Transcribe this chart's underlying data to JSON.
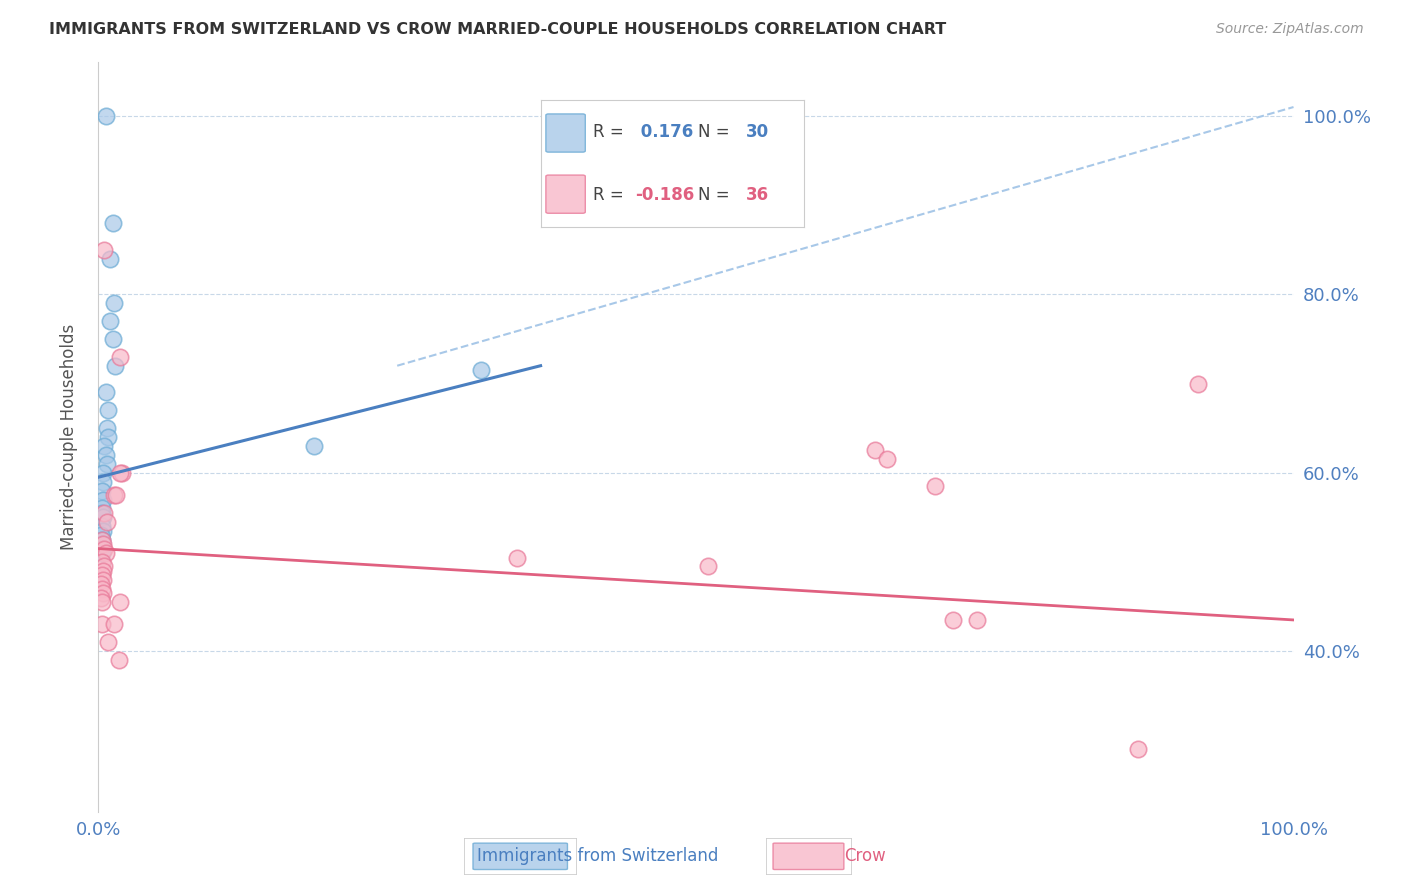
{
  "title": "IMMIGRANTS FROM SWITZERLAND VS CROW MARRIED-COUPLE HOUSEHOLDS CORRELATION CHART",
  "source": "Source: ZipAtlas.com",
  "ylabel": "Married-couple Households",
  "blue_scatter": [
    [
      0.006,
      1.0
    ],
    [
      0.012,
      0.88
    ],
    [
      0.01,
      0.84
    ],
    [
      0.013,
      0.79
    ],
    [
      0.01,
      0.77
    ],
    [
      0.012,
      0.75
    ],
    [
      0.014,
      0.72
    ],
    [
      0.006,
      0.69
    ],
    [
      0.008,
      0.67
    ],
    [
      0.007,
      0.65
    ],
    [
      0.008,
      0.64
    ],
    [
      0.005,
      0.63
    ],
    [
      0.006,
      0.62
    ],
    [
      0.007,
      0.61
    ],
    [
      0.004,
      0.6
    ],
    [
      0.004,
      0.59
    ],
    [
      0.003,
      0.58
    ],
    [
      0.004,
      0.57
    ],
    [
      0.003,
      0.56
    ],
    [
      0.003,
      0.555
    ],
    [
      0.004,
      0.55
    ],
    [
      0.003,
      0.54
    ],
    [
      0.004,
      0.535
    ],
    [
      0.002,
      0.53
    ],
    [
      0.003,
      0.525
    ],
    [
      0.003,
      0.52
    ],
    [
      0.002,
      0.515
    ],
    [
      0.003,
      0.51
    ],
    [
      0.18,
      0.63
    ],
    [
      0.32,
      0.715
    ]
  ],
  "pink_scatter": [
    [
      0.005,
      0.85
    ],
    [
      0.018,
      0.73
    ],
    [
      0.02,
      0.6
    ],
    [
      0.018,
      0.6
    ],
    [
      0.013,
      0.575
    ],
    [
      0.015,
      0.575
    ],
    [
      0.005,
      0.555
    ],
    [
      0.007,
      0.545
    ],
    [
      0.003,
      0.525
    ],
    [
      0.004,
      0.52
    ],
    [
      0.005,
      0.515
    ],
    [
      0.006,
      0.51
    ],
    [
      0.003,
      0.5
    ],
    [
      0.005,
      0.495
    ],
    [
      0.004,
      0.49
    ],
    [
      0.003,
      0.485
    ],
    [
      0.004,
      0.48
    ],
    [
      0.002,
      0.475
    ],
    [
      0.003,
      0.47
    ],
    [
      0.004,
      0.465
    ],
    [
      0.002,
      0.46
    ],
    [
      0.003,
      0.455
    ],
    [
      0.018,
      0.455
    ],
    [
      0.003,
      0.43
    ],
    [
      0.013,
      0.43
    ],
    [
      0.008,
      0.41
    ],
    [
      0.017,
      0.39
    ],
    [
      0.35,
      0.505
    ],
    [
      0.51,
      0.495
    ],
    [
      0.65,
      0.625
    ],
    [
      0.66,
      0.615
    ],
    [
      0.7,
      0.585
    ],
    [
      0.715,
      0.435
    ],
    [
      0.735,
      0.435
    ],
    [
      0.92,
      0.7
    ],
    [
      0.87,
      0.29
    ]
  ],
  "blue_line_x": [
    0.0,
    0.37
  ],
  "blue_line_y": [
    0.595,
    0.72
  ],
  "pink_line_x": [
    0.0,
    1.0
  ],
  "pink_line_y": [
    0.515,
    0.435
  ],
  "dash_line_x": [
    0.25,
    1.0
  ],
  "dash_line_y": [
    0.72,
    1.01
  ],
  "blue_color": "#a8c8e8",
  "blue_edge_color": "#6aaad4",
  "pink_color": "#f8b8c8",
  "pink_edge_color": "#e87898",
  "blue_line_color": "#4a7fc0",
  "pink_line_color": "#e06080",
  "dash_line_color": "#a8c8e8",
  "grid_color": "#c8d8e8",
  "axis_label_color": "#5080c0",
  "title_color": "#333333",
  "source_color": "#999999",
  "background_color": "#ffffff",
  "legend_blue_r": "0.176",
  "legend_blue_n": "30",
  "legend_pink_r": "-0.186",
  "legend_pink_n": "36",
  "xlim": [
    0.0,
    1.0
  ],
  "ylim": [
    0.22,
    1.06
  ],
  "yticks": [
    0.4,
    0.6,
    0.8,
    1.0
  ],
  "ytick_labels": [
    "40.0%",
    "60.0%",
    "80.0%",
    "100.0%"
  ],
  "xtick_positions": [
    0.0,
    1.0
  ],
  "xtick_labels": [
    "0.0%",
    "100.0%"
  ],
  "marker_size": 140
}
